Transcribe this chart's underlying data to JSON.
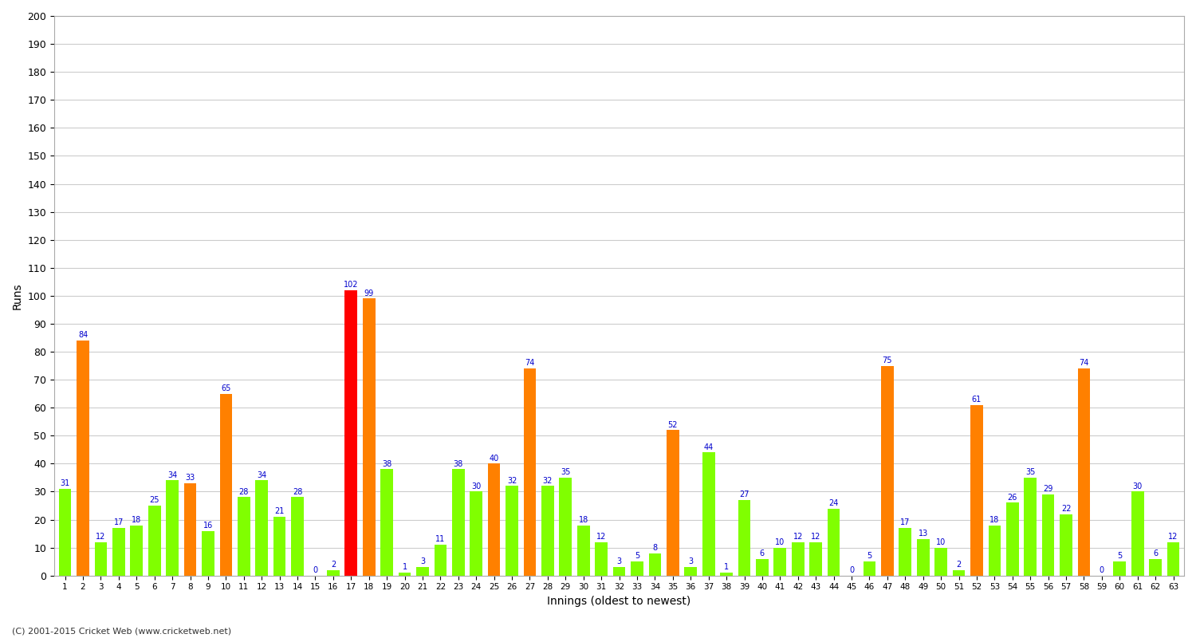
{
  "xlabel": "Innings (oldest to newest)",
  "ylabel": "Runs",
  "ylim": [
    0,
    200
  ],
  "yticks": [
    0,
    10,
    20,
    30,
    40,
    50,
    60,
    70,
    80,
    90,
    100,
    110,
    120,
    130,
    140,
    150,
    160,
    170,
    180,
    190,
    200
  ],
  "innings": [
    1,
    2,
    3,
    4,
    5,
    6,
    7,
    8,
    9,
    10,
    11,
    12,
    13,
    14,
    15,
    16,
    17,
    18,
    19,
    20,
    21,
    22,
    23,
    24,
    25,
    26,
    27,
    28,
    29,
    30,
    31,
    32,
    33,
    34,
    35,
    36,
    37,
    38,
    39,
    40,
    41,
    42,
    43,
    44,
    45,
    46,
    47,
    48,
    49,
    50,
    51,
    52,
    53,
    54,
    55,
    56,
    57,
    58,
    59,
    60,
    61,
    62,
    63
  ],
  "scores": [
    31,
    84,
    12,
    17,
    18,
    25,
    34,
    33,
    16,
    65,
    28,
    34,
    21,
    28,
    0,
    2,
    102,
    99,
    38,
    1,
    3,
    11,
    38,
    30,
    40,
    32,
    74,
    32,
    35,
    18,
    12,
    3,
    5,
    8,
    52,
    3,
    44,
    1,
    27,
    6,
    10,
    12,
    12,
    24,
    0,
    5,
    75,
    17,
    13,
    10,
    2,
    61,
    18,
    26,
    35,
    29,
    22,
    74,
    0,
    5,
    30,
    6,
    12
  ],
  "colors": [
    "#80ff00",
    "#ff8000",
    "#80ff00",
    "#80ff00",
    "#80ff00",
    "#80ff00",
    "#80ff00",
    "#ff8000",
    "#80ff00",
    "#ff8000",
    "#80ff00",
    "#80ff00",
    "#80ff00",
    "#80ff00",
    "#80ff00",
    "#80ff00",
    "#ff0000",
    "#ff8000",
    "#80ff00",
    "#80ff00",
    "#80ff00",
    "#80ff00",
    "#80ff00",
    "#80ff00",
    "#ff8000",
    "#80ff00",
    "#ff8000",
    "#80ff00",
    "#80ff00",
    "#80ff00",
    "#80ff00",
    "#80ff00",
    "#80ff00",
    "#80ff00",
    "#ff8000",
    "#80ff00",
    "#80ff00",
    "#80ff00",
    "#80ff00",
    "#80ff00",
    "#80ff00",
    "#80ff00",
    "#80ff00",
    "#80ff00",
    "#80ff00",
    "#80ff00",
    "#ff8000",
    "#80ff00",
    "#80ff00",
    "#80ff00",
    "#80ff00",
    "#ff8000",
    "#80ff00",
    "#80ff00",
    "#80ff00",
    "#80ff00",
    "#80ff00",
    "#ff8000",
    "#80ff00",
    "#80ff00",
    "#80ff00",
    "#80ff00",
    "#80ff00"
  ],
  "background_color": "#ffffff",
  "grid_color": "#cccccc",
  "label_color": "#0000cc",
  "label_fontsize": 7,
  "bar_width": 0.7,
  "figsize": [
    15.0,
    8.0
  ],
  "dpi": 100,
  "footer": "(C) 2001-2015 Cricket Web (www.cricketweb.net)"
}
